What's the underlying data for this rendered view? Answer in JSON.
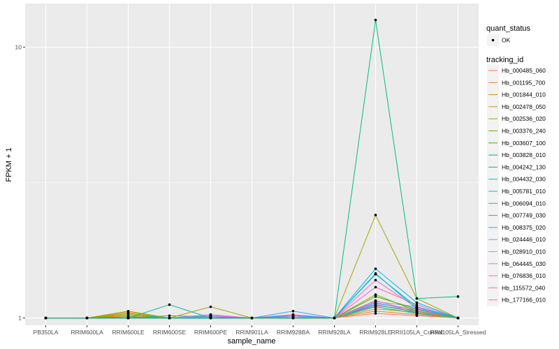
{
  "chart_data": {
    "type": "line",
    "xlabel": "sample_name",
    "ylabel": "FPKM + 1",
    "y_scale": "log10",
    "ylim": [
      0.94,
      14.5
    ],
    "y_ticks": [
      1,
      10
    ],
    "y_tick_labels": [
      "1",
      "10"
    ],
    "grid": true,
    "legend_placement": "right",
    "categories": [
      "PB350LA",
      "RRIM600LA",
      "RRIM600LE",
      "RRIM600SE",
      "RRIM600PE",
      "RRIM901LA",
      "RRIM928BA",
      "RRIM928LA",
      "RRIM928LE",
      "RRII105LA_Control",
      "RRII105LA_Stressed"
    ],
    "shape_legend": {
      "title": "quant_status",
      "entries": [
        "OK"
      ]
    },
    "color_legend_title": "tracking_id",
    "series": [
      {
        "name": "Hb_000485_060",
        "color": "#F8766D",
        "values": [
          1,
          1,
          1.01,
          1,
          1,
          1,
          1,
          1,
          1.04,
          1.02,
          1
        ]
      },
      {
        "name": "Hb_001195_700",
        "color": "#EA8331",
        "values": [
          1,
          1,
          1.02,
          1,
          1.01,
          1,
          1,
          1,
          1.06,
          1.03,
          1
        ]
      },
      {
        "name": "Hb_001844_010",
        "color": "#D89000",
        "values": [
          1,
          1,
          1.05,
          1,
          1,
          1,
          1.01,
          1,
          1.08,
          1.05,
          1
        ]
      },
      {
        "name": "Hb_002478_050",
        "color": "#C09B00",
        "values": [
          1,
          1,
          1.04,
          1,
          1.02,
          1,
          1,
          1,
          1.1,
          1.04,
          1
        ]
      },
      {
        "name": "Hb_002536_020",
        "color": "#A3A500",
        "values": [
          1,
          1,
          1.06,
          1,
          1.1,
          1,
          1,
          1,
          2.4,
          1.18,
          1
        ]
      },
      {
        "name": "Hb_003376_240",
        "color": "#7CAE00",
        "values": [
          1,
          1,
          1.03,
          1,
          1,
          1,
          1,
          1,
          1.22,
          1.06,
          1
        ]
      },
      {
        "name": "Hb_003607_100",
        "color": "#39B600",
        "values": [
          1,
          1,
          1.01,
          1,
          1,
          1,
          1,
          1,
          1.2,
          1.08,
          1
        ]
      },
      {
        "name": "Hb_003828_010",
        "color": "#00BB4E",
        "values": [
          1,
          1,
          1,
          1,
          1,
          1,
          1,
          1,
          1.12,
          1.05,
          1
        ]
      },
      {
        "name": "Hb_004242_130",
        "color": "#00BF7D",
        "values": [
          1,
          1,
          1,
          1,
          1,
          1,
          1,
          1,
          12.6,
          1.18,
          1.2
        ]
      },
      {
        "name": "Hb_004432_030",
        "color": "#00C1A3",
        "values": [
          1,
          1,
          1,
          1.12,
          1,
          1,
          1,
          1,
          1.1,
          1.04,
          1
        ]
      },
      {
        "name": "Hb_005781_010",
        "color": "#00BFC4",
        "values": [
          1,
          1,
          1,
          1.02,
          1.01,
          1,
          1,
          1,
          1.46,
          1.08,
          1
        ]
      },
      {
        "name": "Hb_006094_010",
        "color": "#00BAE0",
        "values": [
          1,
          1,
          1,
          1,
          1,
          1,
          1.02,
          1,
          1.45,
          1.1,
          1
        ]
      },
      {
        "name": "Hb_007749_030",
        "color": "#00B0F6",
        "values": [
          1,
          1,
          1,
          1,
          1,
          1,
          1.02,
          1,
          1.52,
          1.14,
          1
        ]
      },
      {
        "name": "Hb_008375_020",
        "color": "#35A2FF",
        "values": [
          1,
          1,
          1,
          1,
          1,
          1,
          1.06,
          1,
          1.14,
          1.06,
          1
        ]
      },
      {
        "name": "Hb_024446_010",
        "color": "#9590FF",
        "values": [
          1,
          1,
          1,
          1,
          1.02,
          1,
          1.01,
          1,
          1.15,
          1.1,
          1
        ]
      },
      {
        "name": "Hb_028910_010",
        "color": "#C77CFF",
        "values": [
          1,
          1,
          1,
          1,
          1.01,
          1,
          1,
          1,
          1.13,
          1.08,
          1
        ]
      },
      {
        "name": "Hb_064445_030",
        "color": "#E76BF3",
        "values": [
          1,
          1,
          1,
          1,
          1.03,
          1,
          1.02,
          1,
          1.11,
          1.07,
          1
        ]
      },
      {
        "name": "Hb_076836_010",
        "color": "#FA62DB",
        "values": [
          1,
          1,
          1,
          1,
          1.02,
          1,
          1.01,
          1,
          1.38,
          1.09,
          1
        ]
      },
      {
        "name": "Hb_115572_040",
        "color": "#FF62BC",
        "values": [
          1,
          1,
          1,
          1,
          1.01,
          1,
          1.03,
          1,
          1.3,
          1.12,
          1
        ]
      },
      {
        "name": "Hb_177166_010",
        "color": "#FF6C91",
        "values": [
          1,
          1,
          1,
          1,
          1,
          1,
          1.01,
          1,
          1.16,
          1.05,
          1
        ]
      }
    ]
  }
}
